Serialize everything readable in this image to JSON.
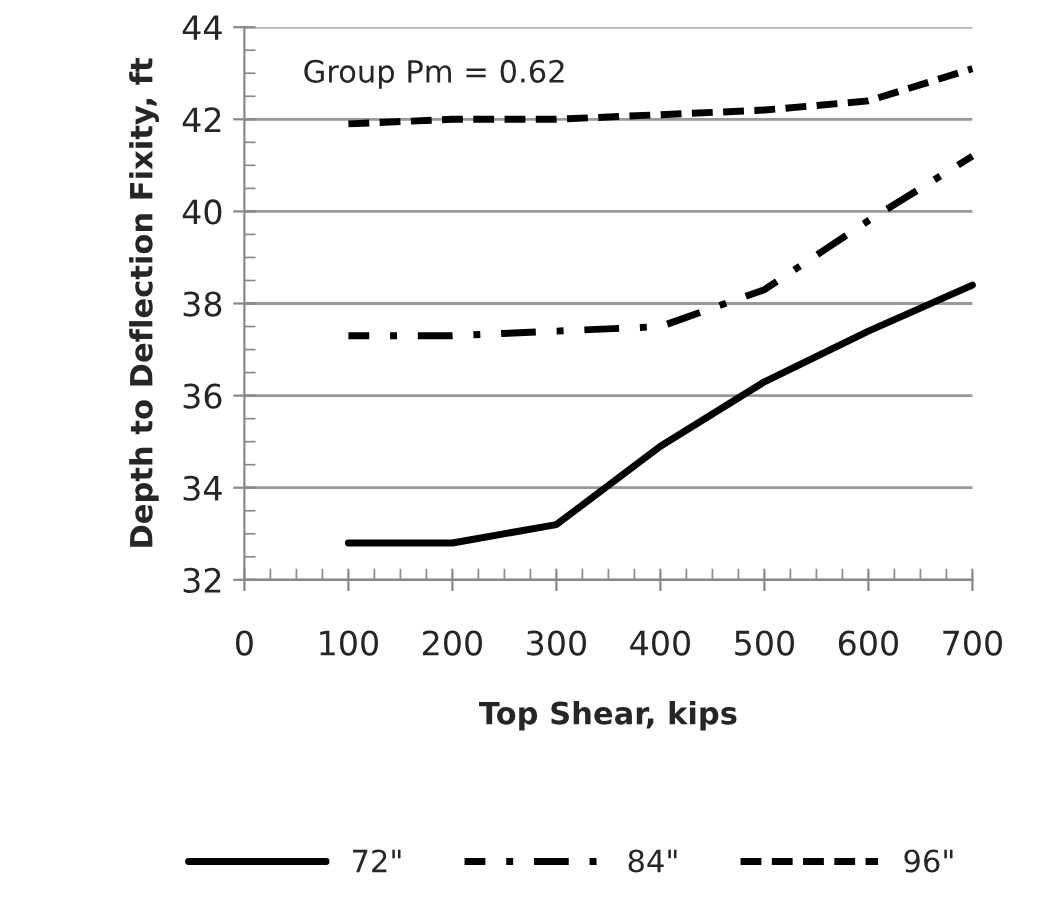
{
  "chart_data": {
    "type": "line",
    "xlabel": "Top Shear, kips",
    "ylabel": "Depth to Deflection Fixity, ft",
    "annotations": [
      "Group Pm = 0.62"
    ],
    "x": [
      100,
      200,
      300,
      400,
      500,
      600,
      700
    ],
    "series": [
      {
        "name": "72\"",
        "color": "#000000",
        "line_style": "solid",
        "values": [
          32.8,
          32.8,
          33.2,
          34.9,
          36.3,
          37.4,
          38.4
        ]
      },
      {
        "name": "84\"",
        "color": "#000000",
        "line_style": "dashdot",
        "values": [
          37.3,
          37.3,
          37.4,
          37.5,
          38.3,
          39.8,
          41.2
        ]
      },
      {
        "name": "96\"",
        "color": "#000000",
        "line_style": "dashed",
        "values": [
          41.9,
          42.0,
          42.0,
          42.1,
          42.2,
          42.4,
          43.1
        ]
      }
    ],
    "xlim": [
      0,
      700
    ],
    "xticks": [
      0,
      100,
      200,
      300,
      400,
      500,
      600,
      700
    ],
    "ylim": [
      32,
      44
    ],
    "yticks": [
      32,
      34,
      36,
      38,
      40,
      42,
      44
    ],
    "grid": "y",
    "legend": "bottom",
    "marker": "none"
  }
}
